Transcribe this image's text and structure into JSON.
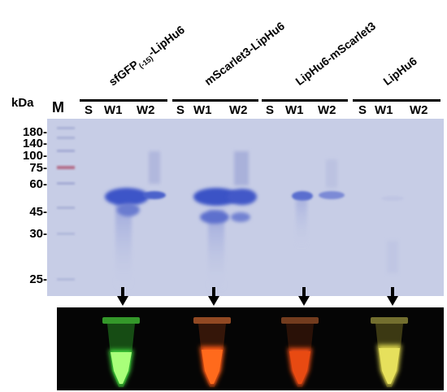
{
  "axis_unit": "kDa",
  "marker_lane_label": "M",
  "groups": [
    {
      "title_html": "sfGFP<sub style=\"font-size:9px\">(-15)</sub>-LipHu6",
      "title_text": "sfGFP(-15)-LipHu6",
      "fluorescence_color": "#3fd93a"
    },
    {
      "title_text": "mScarlet3-LipHu6",
      "fluorescence_color": "#ff5a14"
    },
    {
      "title_text": "LipHu6-mScarlet3",
      "fluorescence_color": "#f24d14"
    },
    {
      "title_text": "LipHu6",
      "fluorescence_color": "#d6cf4a"
    }
  ],
  "lanes": [
    "S",
    "W1",
    "W2"
  ],
  "markers": [
    "180-",
    "140-",
    "100-",
    "75-",
    "60-",
    "45-",
    "30-",
    "25-"
  ],
  "colors": {
    "gel_background": "#c7cde6",
    "band_blue": "#3e55c8",
    "panel_background": "#050505"
  }
}
